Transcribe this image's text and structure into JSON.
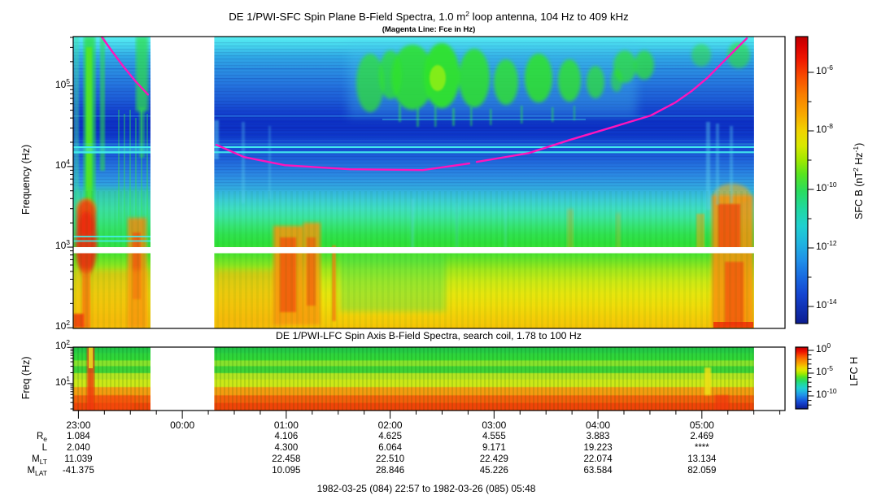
{
  "page": {
    "bg": "#ffffff",
    "accent_magenta": "#ff14bc"
  },
  "sfc": {
    "title_runs": [
      [
        "DE 1/PWI-SFC  Spin Plane B-Field Spectra, 1.0 m"
      ],
      [
        "2",
        "sup"
      ],
      [
        " loop antenna, 104 Hz to 409 kHz"
      ]
    ],
    "subtitle": "(Magenta Line: Fce in Hz)",
    "ylabel": "Frequency (Hz)",
    "ytick_exponents": [
      5,
      4,
      3,
      2
    ],
    "colorbar": {
      "label_runs": [
        [
          "SFC B (nT"
        ],
        [
          "2",
          "sup"
        ],
        [
          " Hz"
        ],
        [
          "-1",
          "sup"
        ],
        [
          ")"
        ]
      ],
      "tick_exponents": [
        -6,
        -8,
        -10,
        -12,
        -14
      ]
    }
  },
  "lfc": {
    "title": "DE 1/PWI-LFC  Spin Axis B-Field Spectra, search coil, 1.78 to 100 Hz",
    "ylabel": "Freq (Hz)",
    "ytick_exponents": [
      2,
      1
    ],
    "colorbar": {
      "label": "LFC H",
      "tick_exponents": [
        0,
        -5,
        -10
      ]
    }
  },
  "time_axis": {
    "hour_labels": [
      "23:00",
      "00:00",
      "01:00",
      "02:00",
      "03:00",
      "04:00",
      "05:00"
    ]
  },
  "ephemeris": {
    "rows": [
      {
        "label_runs": [
          [
            "R"
          ],
          [
            "e",
            "sub"
          ]
        ],
        "values": [
          "1.084",
          "",
          "4.106",
          "4.625",
          "4.555",
          "3.883",
          "2.469"
        ]
      },
      {
        "label_runs": [
          [
            "L"
          ]
        ],
        "values": [
          "2.040",
          "",
          "4.300",
          "6.064",
          "9.171",
          "19.223",
          "****"
        ]
      },
      {
        "label_runs": [
          [
            "M"
          ],
          [
            "LT",
            "sub"
          ]
        ],
        "values": [
          "11.039",
          "",
          "22.458",
          "22.510",
          "22.429",
          "22.074",
          "13.134"
        ]
      },
      {
        "label_runs": [
          [
            "M"
          ],
          [
            "LAT",
            "sub"
          ]
        ],
        "values": [
          "-41.375",
          "",
          "10.095",
          "28.846",
          "45.226",
          "63.584",
          "82.059"
        ]
      }
    ]
  },
  "caption": "1982-03-25 (084) 22:57 to 1982-03-26 (085) 05:48",
  "chart_data": [
    {
      "type": "heatmap",
      "title": "DE 1/PWI-SFC Spin Plane B-Field Spectra, 1.0 m2 loop antenna, 104 Hz to 409 kHz",
      "xlabel_ticks": [
        "23:00",
        "00:00",
        "01:00",
        "02:00",
        "03:00",
        "04:00",
        "05:00"
      ],
      "time_start": "1982-03-25 (084) 22:57",
      "time_end": "1982-03-26 (085) 05:48",
      "t_range_h": [
        22.95,
        29.8
      ],
      "ylabel": "Frequency (Hz)",
      "y_scale": "log",
      "y_range_hz": [
        100,
        409000
      ],
      "colorbar": {
        "label": "SFC B (nT2 Hz-1)",
        "scale": "rainbow",
        "tick_values": [
          "1e-6",
          "1e-8",
          "1e-10",
          "1e-12",
          "1e-14"
        ]
      },
      "data_gaps_h": [
        [
          23.695,
          24.309
        ],
        [
          29.5,
          29.8
        ]
      ],
      "dropout_band_hz": [
        900,
        1200
      ],
      "interference_lines_hz": [
        15500,
        17500
      ],
      "fce_line": {
        "color": "#ff14bc",
        "units": [
          "decimal_hours_day084",
          "Hz"
        ],
        "segments": [
          [
            [
              23.224,
              407000
            ],
            [
              23.326,
              267000
            ],
            [
              23.436,
              172000
            ],
            [
              23.545,
              116000
            ],
            [
              23.67,
              78000
            ]
          ],
          [
            [
              24.328,
              18600
            ],
            [
              24.594,
              13100
            ],
            [
              24.985,
              10400
            ],
            [
              25.612,
              9260
            ],
            [
              26.316,
              9040
            ],
            [
              26.762,
              10900
            ]
          ],
          [
            [
              26.833,
              11400
            ],
            [
              27.334,
              14700
            ],
            [
              27.725,
              21300
            ],
            [
              28.117,
              30200
            ],
            [
              28.508,
              42900
            ],
            [
              28.743,
              62100
            ],
            [
              28.9,
              85900
            ],
            [
              29.056,
              127000
            ],
            [
              29.213,
              203000
            ],
            [
              29.33,
              288000
            ],
            [
              29.432,
              389000
            ]
          ]
        ]
      },
      "features": [
        "broadband intense emission (red/orange, >1e-7) below ~1 kHz at perigee passes near 23:00-23:40 and 05:00-05:30",
        "patchy auroral-kilometric-type green emission 50-300 kHz between ~01:30 and 05:15",
        "dark blue low-power band ~20-60 kHz across whole interval",
        "bright cyan narrowband interference lines near 16-18 kHz",
        "white horizontal instrument dropout band near 1 kHz",
        "orange ELF bursts 300 Hz-2 kHz near 00:20-01:20 and 05:05-05:25",
        "yellow background below ~600 Hz throughout"
      ]
    },
    {
      "type": "heatmap",
      "title": "DE 1/PWI-LFC Spin Axis B-Field Spectra, search coil, 1.78 to 100 Hz",
      "t_range_h": [
        22.95,
        29.8
      ],
      "ylabel": "Freq (Hz)",
      "y_scale": "log",
      "y_range_hz": [
        1.78,
        100
      ],
      "colorbar": {
        "label": "LFC H",
        "scale": "rainbow",
        "tick_values": [
          "1e0",
          "1e-5",
          "1e-10"
        ]
      },
      "data_gaps_h": [
        [
          23.695,
          24.309
        ],
        [
          29.5,
          29.8
        ]
      ],
      "features": [
        "horizontally banded spectrum: green at 20-100 Hz, yellow-green 7-20 Hz, orange 3-7 Hz, red <3 Hz",
        "intense red vertical burst near 23:08 spanning all frequencies",
        "yellow/red enhancement near 05:05-05:10"
      ]
    }
  ]
}
